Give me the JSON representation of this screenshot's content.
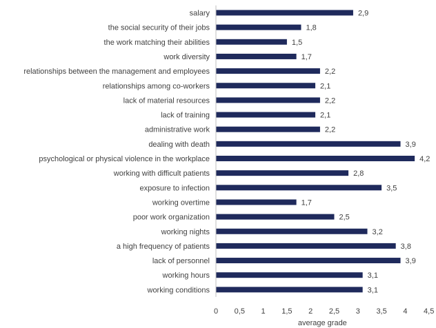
{
  "chart_data": {
    "type": "bar",
    "orientation": "horizontal",
    "categories": [
      "salary",
      "the social security of their jobs",
      "the work matching their abilities",
      "work diversity",
      "relationships between the management and employees",
      "relationships among co-workers",
      "lack of material resources",
      "lack of training",
      "administrative work",
      "dealing with death",
      "psychological or physical violence in the workplace",
      "working with difficult patients",
      "exposure to infection",
      "working overtime",
      "poor work organization",
      "working nights",
      "a high frequency of patients",
      "lack of personnel",
      "working hours",
      "working conditions"
    ],
    "values": [
      2.9,
      1.8,
      1.5,
      1.7,
      2.2,
      2.1,
      2.2,
      2.1,
      2.2,
      3.9,
      4.2,
      2.8,
      3.5,
      1.7,
      2.5,
      3.2,
      3.8,
      3.9,
      3.1,
      3.1
    ],
    "value_labels": [
      "2,9",
      "1,8",
      "1,5",
      "1,7",
      "2,2",
      "2,1",
      "2,2",
      "2,1",
      "2,2",
      "3,9",
      "4,2",
      "2,8",
      "3,5",
      "1,7",
      "2,5",
      "3,2",
      "3,8",
      "3,9",
      "3,1",
      "3,1"
    ],
    "xlabel": "average grade",
    "ylabel": "",
    "title": "",
    "xlim": [
      0,
      4.5
    ],
    "xticks": [
      0,
      0.5,
      1,
      1.5,
      2,
      2.5,
      3,
      3.5,
      4,
      4.5
    ],
    "xtick_labels": [
      "0",
      "0,5",
      "1",
      "1,5",
      "2",
      "2,5",
      "3",
      "3,5",
      "4",
      "4,5"
    ],
    "grid": false,
    "legend": "none",
    "bar_color": "#1f2a5c"
  }
}
